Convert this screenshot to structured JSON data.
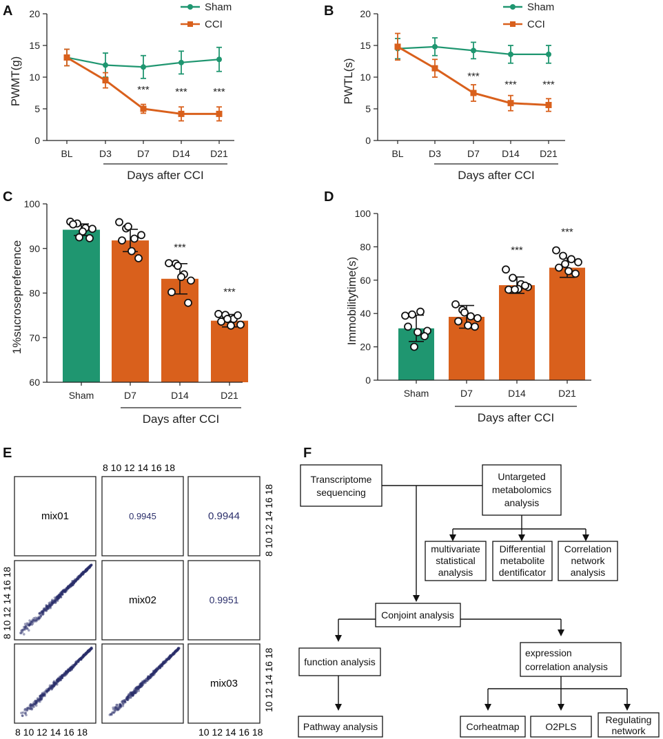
{
  "colors": {
    "sham": "#1f9670",
    "cci": "#d9601c",
    "dot": "#2b2f6b",
    "axis": "#222222"
  },
  "panels": {
    "A": "A",
    "B": "B",
    "C": "C",
    "D": "D",
    "E": "E",
    "F": "F"
  },
  "chart_data": [
    {
      "id": "A",
      "type": "line",
      "ylabel": "PWMT(g)",
      "xlabel": "Days  after CCI",
      "categories": [
        "BL",
        "D3",
        "D7",
        "D14",
        "D21"
      ],
      "ylim": [
        0,
        20
      ],
      "yticks": [
        0,
        5,
        10,
        15,
        20
      ],
      "series": [
        {
          "name": "Sham",
          "color": "#1f9670",
          "values": [
            13.1,
            11.9,
            11.6,
            12.3,
            12.8
          ],
          "errors": [
            1.3,
            1.9,
            1.8,
            1.8,
            1.9
          ]
        },
        {
          "name": "CCI",
          "color": "#d9601c",
          "values": [
            13.1,
            9.5,
            5.0,
            4.2,
            4.2
          ],
          "errors": [
            1.3,
            1.2,
            0.7,
            1.1,
            1.1
          ]
        }
      ],
      "annotations": [
        {
          "category": "D7",
          "text": "***",
          "y": 7.5
        },
        {
          "category": "D14",
          "text": "***",
          "y": 7.2
        },
        {
          "category": "D21",
          "text": "***",
          "y": 7.2
        }
      ]
    },
    {
      "id": "B",
      "type": "line",
      "ylabel": "PWTL(s)",
      "xlabel": "Days  after CCI",
      "categories": [
        "BL",
        "D3",
        "D7",
        "D14",
        "D21"
      ],
      "ylim": [
        0,
        20
      ],
      "yticks": [
        0,
        5,
        10,
        15,
        20
      ],
      "series": [
        {
          "name": "Sham",
          "color": "#1f9670",
          "values": [
            14.5,
            14.8,
            14.2,
            13.6,
            13.6
          ],
          "errors": [
            1.6,
            1.4,
            1.3,
            1.4,
            1.4
          ]
        },
        {
          "name": "CCI",
          "color": "#d9601c",
          "values": [
            14.8,
            11.4,
            7.5,
            5.9,
            5.6
          ],
          "errors": [
            2.1,
            1.4,
            1.3,
            1.2,
            1.0
          ]
        }
      ],
      "annotations": [
        {
          "category": "D7",
          "text": "***",
          "y": 9.6
        },
        {
          "category": "D14",
          "text": "***",
          "y": 8.3
        },
        {
          "category": "D21",
          "text": "***",
          "y": 8.3
        }
      ]
    },
    {
      "id": "C",
      "type": "bar",
      "ylabel": "1%sucrosepreference",
      "xlabel": "Days  after CCI",
      "categories": [
        "Sham",
        "D7",
        "D14",
        "D21"
      ],
      "ylim": [
        60,
        100
      ],
      "yticks": [
        60,
        70,
        80,
        90,
        100
      ],
      "values": [
        94.2,
        91.8,
        83.2,
        73.8
      ],
      "errors": [
        1.3,
        2.5,
        3.4,
        1.4
      ],
      "colors": [
        "#1f9670",
        "#d9601c",
        "#d9601c",
        "#d9601c"
      ],
      "points": [
        [
          96.0,
          95.6,
          94.6,
          94.4,
          95.4,
          93.8,
          92.3,
          92.5
        ],
        [
          95.9,
          94.5,
          92.2,
          93.0,
          91.8,
          89.4,
          87.8,
          94.9
        ],
        [
          86.7,
          86.6,
          84.2,
          82.8,
          80.2,
          83.6,
          77.8,
          86.1
        ],
        [
          75.3,
          75.1,
          74.2,
          72.9,
          73.6,
          72.7,
          75.0,
          74.2
        ]
      ],
      "annotations": [
        {
          "category": "D14",
          "text": "***",
          "y": 89.5
        },
        {
          "category": "D21",
          "text": "***",
          "y": 79.5
        }
      ]
    },
    {
      "id": "D",
      "type": "bar",
      "ylabel": "Immobilitytime(s)",
      "xlabel": "Days  after CCI",
      "categories": [
        "Sham",
        "D7",
        "D14",
        "D21"
      ],
      "ylim": [
        0,
        100
      ],
      "yticks": [
        0,
        20,
        40,
        60,
        80,
        100
      ],
      "values": [
        31.1,
        38.0,
        57.0,
        67.5
      ],
      "errors": [
        7.9,
        6.8,
        4.9,
        5.8
      ],
      "colors": [
        "#1f9670",
        "#d9601c",
        "#d9601c",
        "#d9601c"
      ],
      "points": [
        [
          38.7,
          39.4,
          41.1,
          29.6,
          32.1,
          28.8,
          26.4,
          20.0
        ],
        [
          45.5,
          42.1,
          38.3,
          37.2,
          35.3,
          32.8,
          32.1,
          40.6
        ],
        [
          66.4,
          61.4,
          57.6,
          55.9,
          54.3,
          54.7,
          56.7,
          54.4
        ],
        [
          77.9,
          74.6,
          72.6,
          70.8,
          67.5,
          65.4,
          63.9,
          69.7
        ]
      ],
      "annotations": [
        {
          "category": "D14",
          "text": "***",
          "y": 76
        },
        {
          "category": "D21",
          "text": "***",
          "y": 87
        }
      ]
    },
    {
      "id": "E",
      "type": "scatter",
      "samples": [
        "mix01",
        "mix02",
        "mix03"
      ],
      "correlations": {
        "mix01-mix02": "0.9945",
        "mix01-mix03": "0.9944",
        "mix02-mix03": "0.9951"
      },
      "axis_range": [
        8,
        18
      ],
      "tick_values": [
        8,
        10,
        12,
        14,
        16,
        18
      ],
      "tick_text": {
        "top": "8  10 12 14 16 18",
        "right_upper": "8 10 12 14 16 18",
        "left_middle": "8 10 12 14 16 18",
        "right_bottom": "10 12 14 16 18",
        "bottom_left": "8  10 12 14 16 18",
        "bottom_right": "10 12 14 16 18"
      }
    }
  ],
  "legend": {
    "sham": "Sham",
    "cci": "CCI"
  },
  "flowchart": {
    "transcriptome": [
      "Transcriptome",
      "sequencing"
    ],
    "metabolomics": [
      "Untargeted",
      "metabolomics",
      "analysis"
    ],
    "multivariate": [
      "multivariate",
      "statistical",
      "analysis"
    ],
    "differential": [
      "Differential",
      "metabolite",
      "dentificator"
    ],
    "correlation_net": [
      "Correlation",
      "network",
      "analysis"
    ],
    "conjoint": [
      "Conjoint analysis"
    ],
    "function": [
      "function analysis"
    ],
    "expression": [
      "expression",
      "correlation analysis"
    ],
    "pathway": [
      "Pathway analysis"
    ],
    "corheatmap": [
      "Corheatmap"
    ],
    "o2pls": [
      "O2PLS"
    ],
    "regulating": [
      "Regulating",
      "network"
    ]
  }
}
